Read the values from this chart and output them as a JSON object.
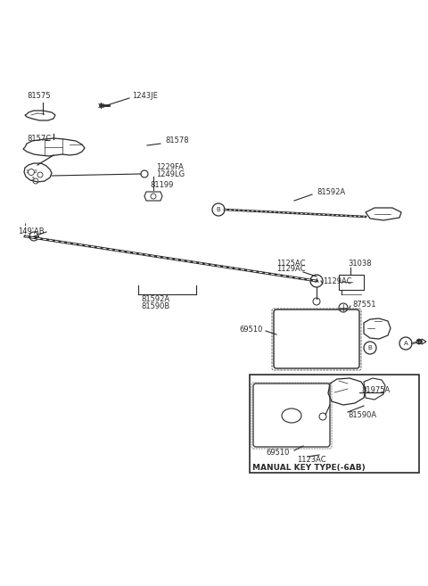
{
  "bg_color": "white",
  "line_color": "#2a2a2a",
  "fig_width": 4.8,
  "fig_height": 6.57,
  "dpi": 100,
  "xlim": [
    0,
    480
  ],
  "ylim": [
    0,
    657
  ]
}
